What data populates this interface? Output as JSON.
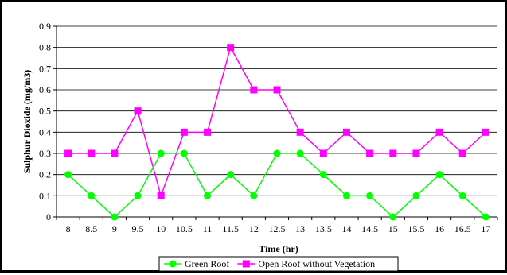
{
  "chart_data": {
    "type": "line",
    "x": [
      8,
      8.5,
      9,
      9.5,
      10,
      10.5,
      11,
      11.5,
      12,
      12.5,
      13,
      13.5,
      14,
      14.5,
      15,
      15.5,
      16,
      16.5,
      17
    ],
    "x_tick_labels": [
      "8",
      "8.5",
      "9",
      "9.5",
      "10",
      "10.5",
      "11",
      "11.5",
      "12",
      "12.5",
      "13",
      "13.5",
      "14",
      "14.5",
      "15",
      "15.5",
      "16",
      "16.5",
      "17"
    ],
    "y_tick_labels": [
      "0",
      "0.1",
      "0.2",
      "0.3",
      "0.4",
      "0.5",
      "0.6",
      "0.7",
      "0.8",
      "0.9"
    ],
    "ylim": [
      0,
      0.9
    ],
    "xlabel": "Time (hr)",
    "ylabel": "Sulphur Dioxide (mg/m3)",
    "grid": true,
    "legend_position": "bottom",
    "series": [
      {
        "name": "Green Roof",
        "color": "#00ff00",
        "marker": "circle",
        "values": [
          0.2,
          0.1,
          0,
          0.1,
          0.3,
          0.3,
          0.1,
          0.2,
          0.1,
          0.3,
          0.3,
          0.2,
          0.1,
          0.1,
          0,
          0.1,
          0.2,
          0.1,
          0
        ]
      },
      {
        "name": "Open Roof without Vegetation",
        "color": "#ff00ff",
        "marker": "square",
        "values": [
          0.3,
          0.3,
          0.3,
          0.5,
          0.1,
          0.4,
          0.4,
          0.8,
          0.6,
          0.6,
          0.4,
          0.3,
          0.4,
          0.3,
          0.3,
          0.3,
          0.4,
          0.3,
          0.4
        ]
      }
    ]
  }
}
